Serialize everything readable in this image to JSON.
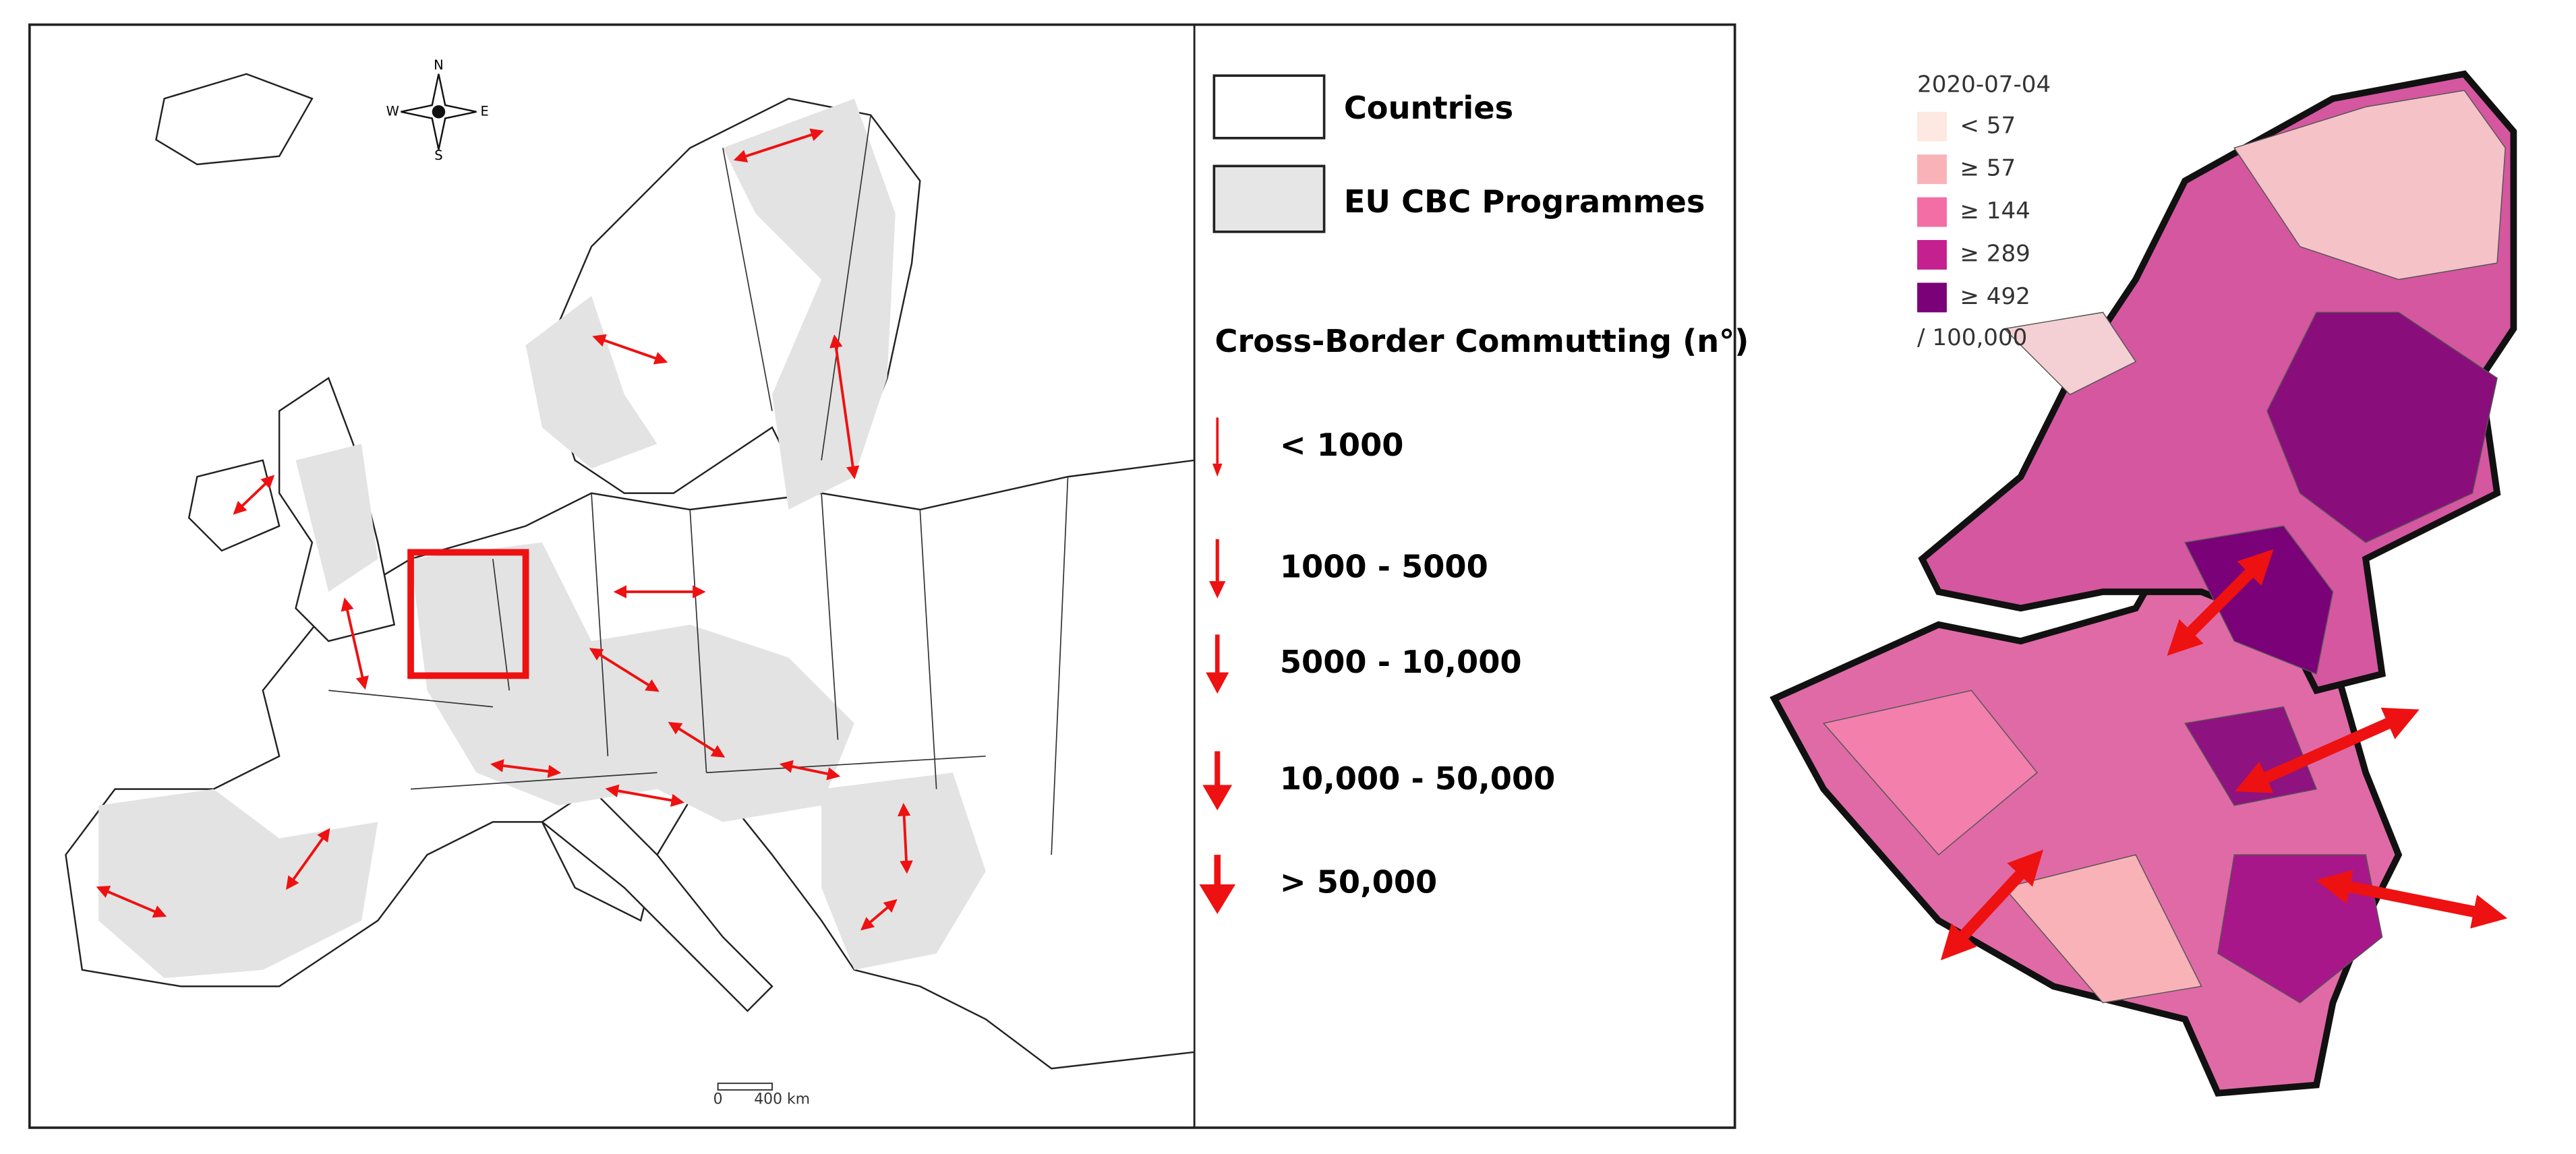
{
  "left_map": {
    "compass": {
      "n": "N",
      "e": "E",
      "s": "S",
      "w": "W"
    },
    "scale_bar": {
      "start": "0",
      "end": "400 km"
    },
    "legend": {
      "layers": [
        {
          "label": "Countries",
          "color": "#ffffff"
        },
        {
          "label": "EU CBC Programmes",
          "color": "#e6e6e6"
        }
      ],
      "commuting_title": "Cross-Border Commutting (n°)",
      "commuting_classes": [
        "< 1000",
        "1000 - 5000",
        "5000 - 10,000",
        "10,000 - 50,000",
        "> 50,000"
      ],
      "arrow_color": "#ee1111"
    }
  },
  "right_map": {
    "legend": {
      "date": "2020-07-04",
      "classes": [
        {
          "label": "< 57",
          "color": "#fde9e1"
        },
        {
          "label": "≥ 57",
          "color": "#f9b3b8"
        },
        {
          "label": "≥ 144",
          "color": "#f36ea5"
        },
        {
          "label": "≥ 289",
          "color": "#c5208f"
        },
        {
          "label": "≥ 492",
          "color": "#7a0177"
        }
      ],
      "unit": "/ 100,000"
    }
  }
}
